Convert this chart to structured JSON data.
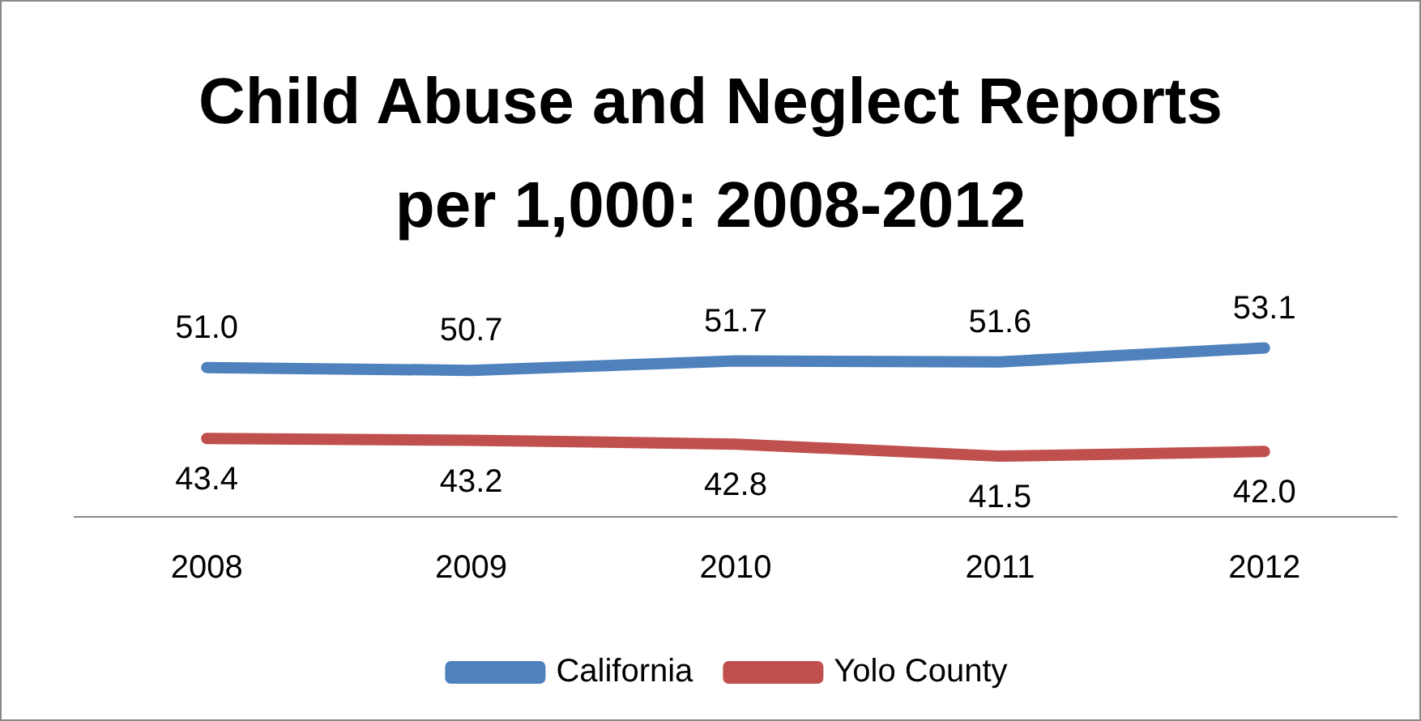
{
  "chart_data": {
    "type": "line",
    "title": "Child Abuse and Neglect Reports per 1,000: 2008-2012",
    "categories": [
      "2008",
      "2009",
      "2010",
      "2011",
      "2012"
    ],
    "series": [
      {
        "name": "California",
        "color": "#4f81bd",
        "values": [
          51.0,
          50.7,
          51.7,
          51.6,
          53.1
        ],
        "value_labels": [
          "51.0",
          "50.7",
          "51.7",
          "51.6",
          "53.1"
        ]
      },
      {
        "name": "Yolo County",
        "color": "#c0504d",
        "values": [
          43.4,
          43.2,
          42.8,
          41.5,
          42.0
        ],
        "value_labels": [
          "43.4",
          "43.2",
          "42.8",
          "41.5",
          "42.0"
        ]
      }
    ],
    "tick_labels": "x",
    "grid": false,
    "legend": "bottom",
    "marker": "none",
    "line_style": "solid"
  }
}
